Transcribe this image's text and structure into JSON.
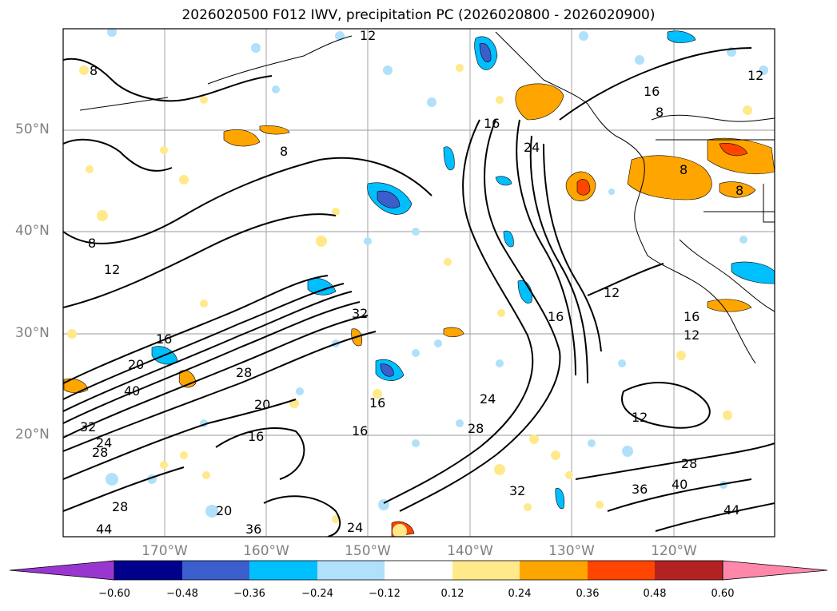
{
  "title": "2026020500 F012 IWV, precipitation PC (2026020800 - 2026020900)",
  "latitude_labels": [
    "50°N",
    "40°N",
    "30°N",
    "20°N"
  ],
  "longitude_labels": [
    "170°W",
    "160°W",
    "150°W",
    "140°W",
    "130°W",
    "120°W"
  ],
  "contour_labels": [
    "8",
    "12",
    "16",
    "20",
    "24",
    "28",
    "32",
    "36",
    "40",
    "44"
  ],
  "colorbar": {
    "ticks": [
      "−0.60",
      "−0.48",
      "−0.36",
      "−0.24",
      "−0.12",
      "0.12",
      "0.24",
      "0.36",
      "0.48",
      "0.60"
    ],
    "colors": [
      "#9a36d0",
      "#00008b",
      "#3a5fcd",
      "#00bfff",
      "#b0e0fa",
      "#ffffff",
      "#ffe98a",
      "#ffa500",
      "#ff4500",
      "#b22222",
      "#ff88aa"
    ]
  },
  "chart_data": {
    "type": "heatmap",
    "title": "2026020500 F012 IWV, precipitation PC (2026020800 - 2026020900)",
    "x_range": [
      "180°W",
      "110°W"
    ],
    "y_range": [
      "10°N",
      "60°N"
    ],
    "iwv_contour_levels": [
      4,
      8,
      12,
      16,
      20,
      24,
      28,
      32,
      36,
      40,
      44
    ],
    "precip_pc_levels": [
      -0.6,
      -0.48,
      -0.36,
      -0.24,
      -0.12,
      0.12,
      0.24,
      0.36,
      0.48,
      0.6
    ]
  }
}
